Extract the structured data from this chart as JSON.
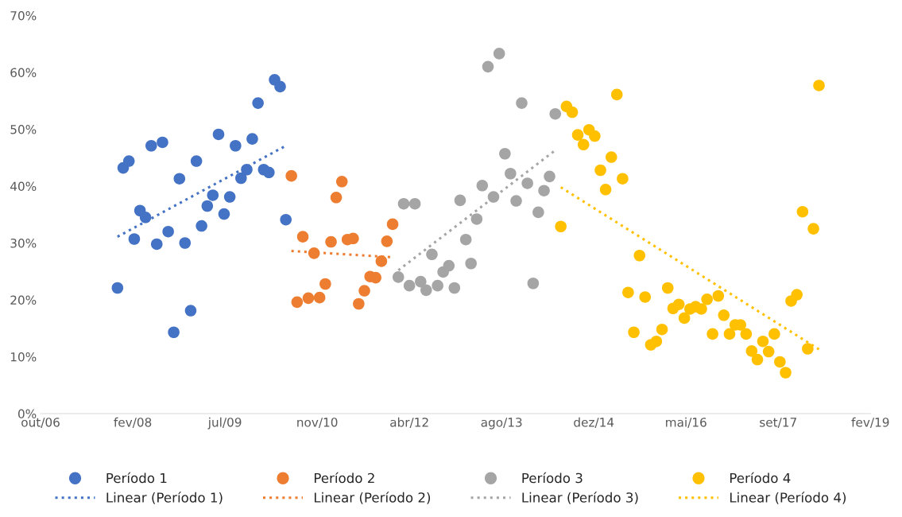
{
  "chart_data": {
    "type": "scatter",
    "ylim": [
      0,
      70
    ],
    "yticks": [
      {
        "value": 0,
        "label": "0%"
      },
      {
        "value": 10,
        "label": "10%"
      },
      {
        "value": 20,
        "label": "20%"
      },
      {
        "value": 30,
        "label": "30%"
      },
      {
        "value": 40,
        "label": "40%"
      },
      {
        "value": 50,
        "label": "50%"
      },
      {
        "value": 60,
        "label": "60%"
      },
      {
        "value": 70,
        "label": "70%"
      }
    ],
    "xlim": [
      "2006-10-10",
      "2019-02-04"
    ],
    "xticks": [
      {
        "value": "2006-10-10",
        "label": "out/06"
      },
      {
        "value": "2008-02-22",
        "label": "fev/08"
      },
      {
        "value": "2009-07-06",
        "label": "jul/09"
      },
      {
        "value": "2010-11-18",
        "label": "nov/10"
      },
      {
        "value": "2012-04-01",
        "label": "abr/12"
      },
      {
        "value": "2013-08-14",
        "label": "ago/13"
      },
      {
        "value": "2014-12-27",
        "label": "dez/14"
      },
      {
        "value": "2016-05-10",
        "label": "mai/16"
      },
      {
        "value": "2017-09-22",
        "label": "set/17"
      },
      {
        "value": "2019-02-04",
        "label": "fev/19"
      }
    ],
    "grid": false,
    "legend": "bottom",
    "series": [
      {
        "name": "Período 1",
        "marker": "circle",
        "color": "#4472c4",
        "x": [
          "2007-12",
          "2008-01",
          "2008-02",
          "2008-03",
          "2008-04",
          "2008-05",
          "2008-06",
          "2008-07",
          "2008-08",
          "2008-09",
          "2008-10",
          "2008-11",
          "2008-12",
          "2009-01",
          "2009-02",
          "2009-03",
          "2009-04",
          "2009-05",
          "2009-06",
          "2009-07",
          "2009-08",
          "2009-09",
          "2009-10",
          "2009-11",
          "2009-12",
          "2010-01",
          "2010-02",
          "2010-03",
          "2010-04",
          "2010-05",
          "2010-06"
        ],
        "values": [
          22.1,
          43.2,
          44.4,
          30.7,
          35.7,
          34.5,
          47.1,
          29.8,
          47.7,
          32.0,
          14.3,
          41.3,
          30.0,
          18.1,
          44.4,
          33.0,
          36.5,
          38.4,
          49.1,
          35.1,
          38.1,
          47.1,
          41.4,
          42.9,
          48.3,
          54.6,
          42.9,
          42.4,
          58.7,
          57.5,
          34.1
        ]
      },
      {
        "name": "Linear (Período 1)",
        "type": "line",
        "line_style": "dotted",
        "color": "#4472c4",
        "x": [
          "2007-12",
          "2010-06"
        ],
        "values": [
          31.1,
          47.1
        ]
      },
      {
        "name": "Período 2",
        "marker": "circle",
        "color": "#ed7d31",
        "x": [
          "2010-07",
          "2010-08",
          "2010-09",
          "2010-10",
          "2010-11",
          "2010-12",
          "2011-01",
          "2011-02",
          "2011-03",
          "2011-04",
          "2011-05",
          "2011-06",
          "2011-07",
          "2011-08",
          "2011-09",
          "2011-10",
          "2011-11",
          "2011-12",
          "2012-01"
        ],
        "values": [
          41.8,
          19.6,
          31.1,
          20.3,
          28.2,
          20.4,
          22.8,
          30.2,
          38.0,
          40.8,
          30.6,
          30.8,
          19.3,
          21.6,
          24.1,
          23.9,
          26.8,
          30.3,
          33.3
        ]
      },
      {
        "name": "Linear (Período 2)",
        "type": "line",
        "line_style": "dotted",
        "color": "#ed7d31",
        "x": [
          "2010-07",
          "2012-01"
        ],
        "values": [
          28.6,
          27.5
        ]
      },
      {
        "name": "Período 3",
        "marker": "circle",
        "color": "#a5a5a5",
        "x": [
          "2012-02",
          "2012-03",
          "2012-04",
          "2012-05",
          "2012-06",
          "2012-07",
          "2012-08",
          "2012-09",
          "2012-10",
          "2012-11",
          "2012-12",
          "2013-01",
          "2013-02",
          "2013-03",
          "2013-04",
          "2013-05",
          "2013-06",
          "2013-07",
          "2013-08",
          "2013-09",
          "2013-10",
          "2013-11",
          "2013-12",
          "2014-01",
          "2014-02",
          "2014-03",
          "2014-04",
          "2014-05",
          "2014-06"
        ],
        "values": [
          24.0,
          36.9,
          22.5,
          36.9,
          23.2,
          21.7,
          28.0,
          22.5,
          24.9,
          26.0,
          22.1,
          37.5,
          30.6,
          26.4,
          34.2,
          40.1,
          61.0,
          38.1,
          63.3,
          45.7,
          42.2,
          37.4,
          54.6,
          40.5,
          22.9,
          35.4,
          39.2,
          41.7,
          52.7
        ]
      },
      {
        "name": "Linear (Período 3)",
        "type": "line",
        "line_style": "dotted",
        "color": "#a5a5a5",
        "x": [
          "2012-02",
          "2014-06"
        ],
        "values": [
          25.2,
          46.3
        ]
      },
      {
        "name": "Período 4",
        "marker": "circle",
        "color": "#ffc000",
        "x": [
          "2014-07",
          "2014-08",
          "2014-09",
          "2014-10",
          "2014-11",
          "2014-12",
          "2015-01",
          "2015-02",
          "2015-03",
          "2015-04",
          "2015-05",
          "2015-06",
          "2015-07",
          "2015-08",
          "2015-09",
          "2015-10",
          "2015-11",
          "2015-12",
          "2016-01",
          "2016-02",
          "2016-03",
          "2016-04",
          "2016-05",
          "2016-06",
          "2016-07",
          "2016-08",
          "2016-09",
          "2016-10",
          "2016-11",
          "2016-12",
          "2017-01",
          "2017-02",
          "2017-03",
          "2017-04",
          "2017-05",
          "2017-06",
          "2017-07",
          "2017-08",
          "2017-09",
          "2017-10",
          "2017-11",
          "2017-12",
          "2018-01",
          "2018-02",
          "2018-03",
          "2018-04",
          "2018-05"
        ],
        "values": [
          32.9,
          54.0,
          53.0,
          49.0,
          47.3,
          49.9,
          48.8,
          42.8,
          39.4,
          45.1,
          56.1,
          41.3,
          21.3,
          14.3,
          27.8,
          20.5,
          12.1,
          12.7,
          14.8,
          22.1,
          18.5,
          19.2,
          16.8,
          18.4,
          18.8,
          18.4,
          20.1,
          14.0,
          20.7,
          17.3,
          14.0,
          15.6,
          15.6,
          14.0,
          11.0,
          9.5,
          12.7,
          10.9,
          14.0,
          9.1,
          7.2,
          19.8,
          20.9,
          35.5,
          11.4,
          32.5,
          57.7
        ]
      },
      {
        "name": "Linear (Período 4)",
        "type": "line",
        "line_style": "dotted",
        "color": "#ffc000",
        "x": [
          "2014-07",
          "2018-05"
        ],
        "values": [
          39.8,
          11.3
        ]
      }
    ]
  }
}
